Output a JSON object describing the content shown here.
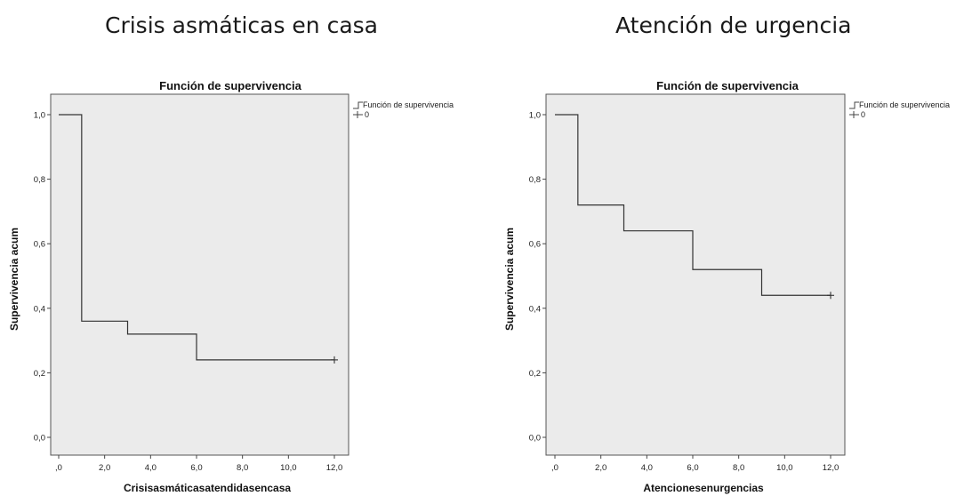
{
  "panels": {
    "left_heading": "Crisis asmáticas en casa",
    "right_heading": "Atención de urgencia"
  },
  "chart_data": [
    {
      "type": "line",
      "step": "post",
      "title": "Función de supervivencia",
      "xlabel": "Crisisasmáticasatendidasencasa",
      "ylabel": "Supervivencia acum",
      "xlim": [
        0,
        12
      ],
      "ylim": [
        0,
        1
      ],
      "xticks": [
        ",0",
        "2,0",
        "4,0",
        "6,0",
        "8,0",
        "10,0",
        "12,0"
      ],
      "yticks": [
        "0,0",
        "0,2",
        "0,4",
        "0,6",
        "0,8",
        "1,0"
      ],
      "legend": [
        "Función de supervivencia",
        "0"
      ],
      "legend_position": "top-right, outside plot",
      "plot_background": "#ebebeb",
      "series": [
        {
          "name": "Función de supervivencia",
          "x": [
            0,
            1,
            3,
            6,
            12
          ],
          "y": [
            1.0,
            0.36,
            0.32,
            0.24,
            0.24
          ],
          "censored": [
            [
              12,
              0.24
            ]
          ]
        }
      ]
    },
    {
      "type": "line",
      "step": "post",
      "title": "Función de supervivencia",
      "xlabel": "Atencionesenurgencias",
      "ylabel": "Supervivencia acum",
      "xlim": [
        0,
        12
      ],
      "ylim": [
        0,
        1
      ],
      "xticks": [
        ",0",
        "2,0",
        "4,0",
        "6,0",
        "8,0",
        "10,0",
        "12,0"
      ],
      "yticks": [
        "0,0",
        "0,2",
        "0,4",
        "0,6",
        "0,8",
        "1,0"
      ],
      "legend": [
        "Función de supervivencia",
        "0"
      ],
      "legend_position": "top-right, outside plot",
      "plot_background": "#ebebeb",
      "series": [
        {
          "name": "Función de supervivencia",
          "x": [
            0,
            1,
            3,
            6,
            9,
            12
          ],
          "y": [
            1.0,
            0.72,
            0.64,
            0.52,
            0.44,
            0.44
          ],
          "censored": [
            [
              12,
              0.44
            ]
          ]
        }
      ]
    }
  ]
}
